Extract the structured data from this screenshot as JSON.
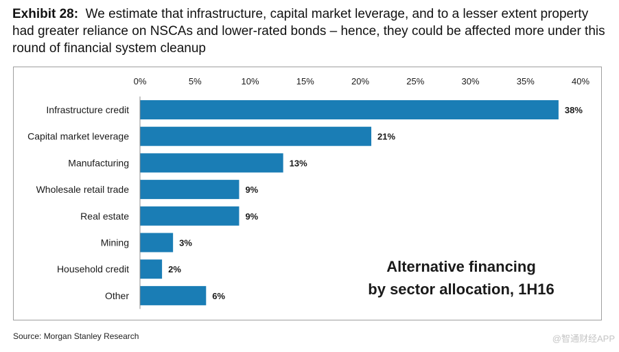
{
  "header": {
    "exhibit_label": "Exhibit 28:",
    "description": "We estimate that infrastructure, capital market leverage, and to a lesser extent property had greater reliance on NSCAs and lower-rated bonds – hence, they could be affected more under this round of financial system cleanup"
  },
  "chart_data": {
    "type": "bar",
    "orientation": "horizontal",
    "categories": [
      "Infrastructure credit",
      "Capital market leverage",
      "Manufacturing",
      "Wholesale retail trade",
      "Real estate",
      "Mining",
      "Household credit",
      "Other"
    ],
    "values": [
      38,
      21,
      13,
      9,
      9,
      3,
      2,
      6
    ],
    "value_labels": [
      "38%",
      "21%",
      "13%",
      "9%",
      "9%",
      "3%",
      "2%",
      "6%"
    ],
    "xlim": [
      0,
      40
    ],
    "xticks": [
      0,
      5,
      10,
      15,
      20,
      25,
      30,
      35,
      40
    ],
    "xtick_labels": [
      "0%",
      "5%",
      "10%",
      "15%",
      "20%",
      "25%",
      "30%",
      "35%",
      "40%"
    ],
    "axis_position": "top",
    "grid": false,
    "annotation_line1": "Alternative financing",
    "annotation_line2": "by sector allocation, 1H16",
    "bar_color": "#1a7db5"
  },
  "footer": {
    "source": "Source: Morgan Stanley Research",
    "watermark": "@智通财经APP"
  }
}
